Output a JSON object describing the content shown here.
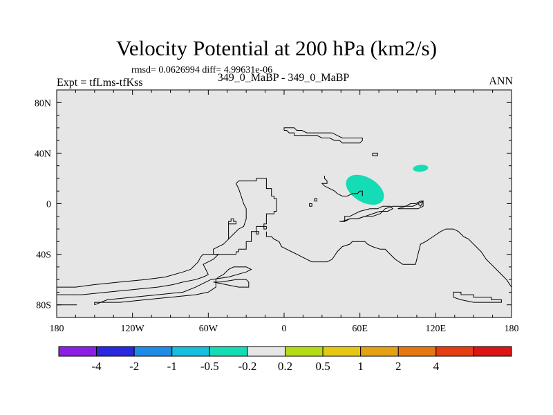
{
  "header": {
    "title": "Velocity Potential at 200 hPa (km2/s)",
    "stats": "rmsd= 0.0626994 diff= 4.99631e-06",
    "expt": "Expt = tfLms-tfKss",
    "case": "349_0_MaBP - 349_0_MaBP",
    "season": "ANN"
  },
  "chart_data": {
    "type": "heatmap",
    "title": "Velocity Potential at 200 hPa (km2/s)",
    "xlabel": "",
    "ylabel": "",
    "xlim": [
      -180,
      180
    ],
    "ylim": [
      -90,
      90
    ],
    "x_ticks": [
      {
        "value": -180,
        "label": "180"
      },
      {
        "value": -120,
        "label": "120W"
      },
      {
        "value": -60,
        "label": "60W"
      },
      {
        "value": 0,
        "label": "0"
      },
      {
        "value": 60,
        "label": "60E"
      },
      {
        "value": 120,
        "label": "120E"
      },
      {
        "value": 180,
        "label": "180"
      }
    ],
    "y_ticks": [
      {
        "value": 80,
        "label": "80N"
      },
      {
        "value": 40,
        "label": "40N"
      },
      {
        "value": 0,
        "label": "0"
      },
      {
        "value": -40,
        "label": "40S"
      },
      {
        "value": -80,
        "label": "80S"
      }
    ],
    "background_level_color": "#e6e6e6",
    "colorbar": {
      "colors": [
        "#8c1fe6",
        "#2828e0",
        "#1e8ce6",
        "#14bedc",
        "#14dcb4",
        "#e6e6e6",
        "#b4dc14",
        "#e6c814",
        "#e6a014",
        "#e67814",
        "#e63c14",
        "#dc1414"
      ],
      "labels": [
        "-4",
        "-2",
        "-1",
        "-0.5",
        "-0.2",
        "0.2",
        "0.5",
        "1",
        "2",
        "4"
      ]
    },
    "features": [
      {
        "name": "anomaly over Arabian Sea",
        "lon": 64,
        "lat": 11,
        "range": "-0.5 to -0.2",
        "color": "#14dcb4"
      },
      {
        "name": "anomaly over East Asia",
        "lon": 108,
        "lat": 28,
        "range": "-0.5 to -0.2",
        "color": "#14dcb4"
      }
    ],
    "coastlines": [
      [
        [
          -32,
          18
        ],
        [
          -22,
          18
        ],
        [
          -22,
          20
        ],
        [
          -18,
          20
        ],
        [
          -14,
          20
        ],
        [
          -14,
          12
        ],
        [
          -10,
          12
        ],
        [
          -10,
          6
        ],
        [
          -8,
          6
        ],
        [
          -8,
          4
        ],
        [
          -6,
          4
        ],
        [
          -6,
          -6
        ],
        [
          -8,
          -6
        ],
        [
          -8,
          -8
        ],
        [
          -12,
          -8
        ],
        [
          -14,
          -8
        ],
        [
          -14,
          -16
        ],
        [
          -16,
          -16
        ],
        [
          -16,
          -18
        ],
        [
          -22,
          -18
        ],
        [
          -22,
          -22
        ],
        [
          -26,
          -22
        ],
        [
          -26,
          -30
        ],
        [
          -30,
          -30
        ],
        [
          -30,
          -36
        ],
        [
          -34,
          -36
        ],
        [
          -36,
          -36
        ],
        [
          -36,
          -38
        ],
        [
          -38,
          -38
        ],
        [
          -38,
          -40
        ],
        [
          -44,
          -40
        ],
        [
          -48,
          -40
        ],
        [
          -60,
          -40
        ],
        [
          -64,
          -40
        ],
        [
          -66,
          -42
        ],
        [
          -68,
          -46
        ],
        [
          -70,
          -48
        ],
        [
          -72,
          -50
        ],
        [
          -74,
          -52
        ],
        [
          -80,
          -54
        ],
        [
          -94,
          -58
        ],
        [
          -110,
          -60
        ],
        [
          -130,
          -62
        ],
        [
          -150,
          -64
        ],
        [
          -165,
          -66
        ],
        [
          -180,
          -66
        ]
      ],
      [
        [
          -180,
          -72
        ],
        [
          -160,
          -72
        ],
        [
          -140,
          -70
        ],
        [
          -120,
          -68
        ],
        [
          -100,
          -66
        ],
        [
          -88,
          -64
        ],
        [
          -80,
          -62
        ],
        [
          -70,
          -60
        ],
        [
          -64,
          -58
        ],
        [
          -60,
          -56
        ],
        [
          -62,
          -52
        ],
        [
          -64,
          -48
        ],
        [
          -60,
          -46
        ],
        [
          -56,
          -44
        ],
        [
          -54,
          -42
        ],
        [
          -52,
          -40
        ],
        [
          -56,
          -40
        ],
        [
          -56,
          -36
        ],
        [
          -52,
          -34
        ],
        [
          -48,
          -32
        ],
        [
          -44,
          -28
        ],
        [
          -40,
          -24
        ],
        [
          -36,
          -20
        ],
        [
          -32,
          -18
        ],
        [
          -30,
          -12
        ],
        [
          -30,
          -4
        ],
        [
          -32,
          0
        ],
        [
          -34,
          6
        ],
        [
          -36,
          12
        ],
        [
          -38,
          16
        ],
        [
          -36,
          18
        ],
        [
          -32,
          18
        ]
      ],
      [
        [
          -44,
          -28
        ],
        [
          -44,
          -14
        ],
        [
          -42,
          -14
        ],
        [
          -42,
          -12
        ],
        [
          -40,
          -12
        ],
        [
          -40,
          -14
        ],
        [
          -38,
          -14
        ],
        [
          -38,
          -16
        ],
        [
          -44,
          -16
        ],
        [
          -44,
          -28
        ]
      ],
      [
        [
          -150,
          -80
        ],
        [
          -150,
          -78
        ],
        [
          -130,
          -78
        ],
        [
          -110,
          -76
        ],
        [
          -90,
          -74
        ],
        [
          -70,
          -72
        ],
        [
          -60,
          -70
        ],
        [
          -54,
          -66
        ],
        [
          -54,
          -60
        ],
        [
          -52,
          -58
        ],
        [
          -48,
          -56
        ],
        [
          -46,
          -54
        ],
        [
          -44,
          -52
        ],
        [
          -40,
          -50
        ],
        [
          -36,
          -50
        ],
        [
          -30,
          -50
        ],
        [
          -26,
          -52
        ],
        [
          -30,
          -54
        ],
        [
          -44,
          -58
        ],
        [
          -58,
          -60
        ],
        [
          -62,
          -62
        ],
        [
          -70,
          -66
        ],
        [
          -80,
          -70
        ],
        [
          -100,
          -72
        ],
        [
          -120,
          -74
        ],
        [
          -140,
          -76
        ],
        [
          -150,
          -80
        ]
      ],
      [
        [
          -56,
          -62
        ],
        [
          -50,
          -62
        ],
        [
          -38,
          -60
        ],
        [
          -30,
          -60
        ],
        [
          -28,
          -62
        ],
        [
          -28,
          -66
        ],
        [
          -36,
          -66
        ],
        [
          -46,
          -64
        ],
        [
          -56,
          -62
        ]
      ],
      [
        [
          -14,
          -20
        ],
        [
          -14,
          -18
        ],
        [
          -16,
          -18
        ],
        [
          -16,
          -20
        ],
        [
          -14,
          -20
        ]
      ],
      [
        [
          -20,
          -24
        ],
        [
          -20,
          -22
        ],
        [
          -22,
          -22
        ],
        [
          -22,
          -24
        ],
        [
          -20,
          -24
        ]
      ],
      [
        [
          0,
          58
        ],
        [
          2,
          58
        ],
        [
          4,
          56
        ],
        [
          6,
          56
        ],
        [
          8,
          56
        ],
        [
          8,
          54
        ],
        [
          12,
          54
        ],
        [
          16,
          54
        ],
        [
          20,
          54
        ],
        [
          26,
          54
        ],
        [
          30,
          52
        ],
        [
          36,
          52
        ],
        [
          40,
          50
        ],
        [
          44,
          50
        ],
        [
          46,
          48
        ],
        [
          50,
          48
        ],
        [
          56,
          48
        ],
        [
          60,
          48
        ],
        [
          62,
          50
        ],
        [
          62,
          52
        ],
        [
          58,
          52
        ],
        [
          54,
          52
        ],
        [
          50,
          52
        ],
        [
          46,
          52
        ],
        [
          42,
          54
        ],
        [
          38,
          56
        ],
        [
          32,
          56
        ],
        [
          28,
          56
        ],
        [
          24,
          56
        ],
        [
          22,
          56
        ],
        [
          18,
          56
        ],
        [
          14,
          58
        ],
        [
          10,
          58
        ],
        [
          8,
          60
        ],
        [
          4,
          60
        ],
        [
          0,
          60
        ],
        [
          0,
          58
        ]
      ],
      [
        [
          70,
          40
        ],
        [
          70,
          38
        ],
        [
          74,
          38
        ],
        [
          74,
          40
        ],
        [
          70,
          40
        ]
      ],
      [
        [
          -14,
          -22
        ],
        [
          -14,
          -26
        ],
        [
          -10,
          -26
        ],
        [
          -8,
          -28
        ],
        [
          -4,
          -30
        ],
        [
          -2,
          -34
        ],
        [
          2,
          -36
        ],
        [
          6,
          -38
        ],
        [
          10,
          -40
        ],
        [
          14,
          -42
        ],
        [
          18,
          -44
        ],
        [
          22,
          -46
        ],
        [
          28,
          -46
        ],
        [
          34,
          -46
        ],
        [
          38,
          -44
        ],
        [
          42,
          -38
        ],
        [
          46,
          -34
        ],
        [
          52,
          -32
        ],
        [
          54,
          -30
        ],
        [
          60,
          -30
        ],
        [
          64,
          -30
        ],
        [
          66,
          -32
        ],
        [
          70,
          -34
        ],
        [
          76,
          -36
        ],
        [
          80,
          -36
        ],
        [
          84,
          -40
        ],
        [
          88,
          -44
        ],
        [
          94,
          -48
        ],
        [
          104,
          -48
        ],
        [
          106,
          -40
        ],
        [
          108,
          -32
        ],
        [
          112,
          -30
        ],
        [
          118,
          -26
        ],
        [
          124,
          -22
        ],
        [
          128,
          -20
        ],
        [
          134,
          -20
        ],
        [
          138,
          -22
        ],
        [
          140,
          -24
        ],
        [
          142,
          -26
        ],
        [
          146,
          -28
        ],
        [
          148,
          -30
        ],
        [
          152,
          -34
        ],
        [
          156,
          -38
        ],
        [
          160,
          -44
        ],
        [
          164,
          -48
        ],
        [
          168,
          -52
        ],
        [
          172,
          -56
        ],
        [
          176,
          -60
        ],
        [
          180,
          -66
        ]
      ],
      [
        [
          32,
          22
        ],
        [
          32,
          20
        ],
        [
          34,
          18
        ],
        [
          34,
          16
        ],
        [
          32,
          16
        ],
        [
          30,
          16
        ],
        [
          32,
          14
        ],
        [
          36,
          12
        ],
        [
          40,
          10
        ],
        [
          42,
          8
        ],
        [
          46,
          6
        ],
        [
          50,
          6
        ],
        [
          54,
          8
        ],
        [
          58,
          8
        ],
        [
          60,
          10
        ],
        [
          62,
          10
        ],
        [
          62,
          6
        ]
      ],
      [
        [
          44,
          -14
        ],
        [
          48,
          -14
        ],
        [
          52,
          -12
        ],
        [
          58,
          -12
        ],
        [
          64,
          -10
        ],
        [
          70,
          -10
        ],
        [
          76,
          -8
        ],
        [
          80,
          -4
        ],
        [
          86,
          -2
        ],
        [
          92,
          -2
        ],
        [
          96,
          -2
        ],
        [
          102,
          -2
        ],
        [
          106,
          0
        ],
        [
          108,
          -2
        ],
        [
          110,
          2
        ],
        [
          106,
          0
        ]
      ],
      [
        [
          20,
          -2
        ],
        [
          22,
          -2
        ],
        [
          22,
          0
        ],
        [
          20,
          0
        ],
        [
          20,
          -2
        ]
      ],
      [
        [
          24,
          2
        ],
        [
          26,
          2
        ],
        [
          26,
          4
        ],
        [
          24,
          4
        ],
        [
          24,
          2
        ]
      ],
      [
        [
          44,
          -14
        ],
        [
          48,
          -14
        ],
        [
          48,
          -10
        ],
        [
          52,
          -10
        ],
        [
          56,
          -8
        ],
        [
          60,
          -6
        ],
        [
          68,
          -4
        ],
        [
          74,
          -4
        ],
        [
          78,
          -2
        ],
        [
          84,
          -2
        ],
        [
          86,
          -4
        ],
        [
          82,
          -6
        ],
        [
          76,
          -6
        ],
        [
          70,
          -8
        ],
        [
          64,
          -10
        ],
        [
          58,
          -12
        ],
        [
          52,
          -12
        ],
        [
          46,
          -14
        ],
        [
          44,
          -14
        ]
      ],
      [
        [
          90,
          -4
        ],
        [
          96,
          -2
        ],
        [
          100,
          0
        ],
        [
          104,
          0
        ],
        [
          108,
          2
        ],
        [
          110,
          2
        ],
        [
          110,
          -2
        ],
        [
          106,
          -4
        ],
        [
          100,
          -4
        ],
        [
          94,
          -4
        ],
        [
          90,
          -4
        ]
      ],
      [
        [
          134,
          -74
        ],
        [
          134,
          -70
        ],
        [
          140,
          -70
        ],
        [
          140,
          -72
        ],
        [
          150,
          -72
        ],
        [
          150,
          -74
        ],
        [
          164,
          -74
        ],
        [
          164,
          -76
        ],
        [
          172,
          -76
        ],
        [
          172,
          -78
        ],
        [
          162,
          -78
        ],
        [
          150,
          -78
        ],
        [
          140,
          -76
        ],
        [
          134,
          -74
        ]
      ],
      [
        [
          -164,
          -80
        ],
        [
          -180,
          -80
        ]
      ]
    ]
  }
}
